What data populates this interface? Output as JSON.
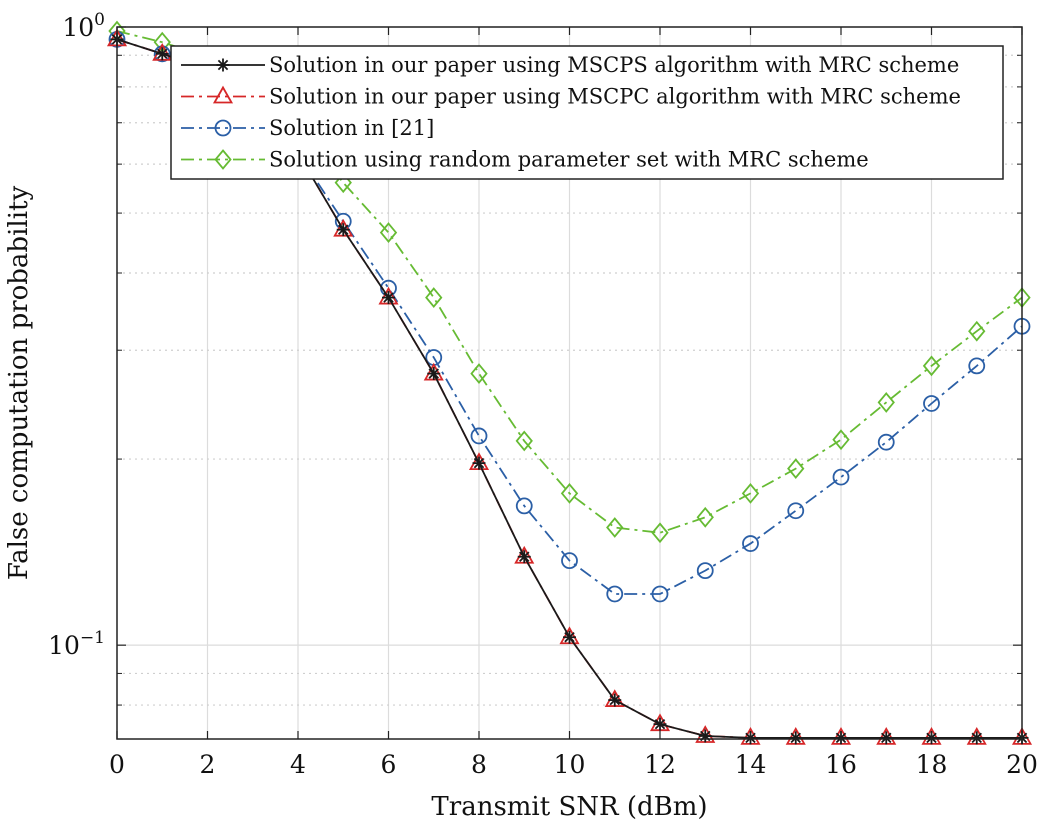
{
  "chart_data": {
    "type": "line",
    "xlabel": "Transmit SNR (dBm)",
    "ylabel": "False computation probability",
    "xlim": [
      0,
      20
    ],
    "ylim": [
      0.0705,
      1.0
    ],
    "yscale": "log",
    "grid": true,
    "legend_position": "top-right",
    "x_ticks": [
      "0",
      "2",
      "4",
      "6",
      "8",
      "10",
      "12",
      "14",
      "16",
      "18",
      "20"
    ],
    "y_ticks": [
      {
        "value": 1.0,
        "base": "10",
        "exp": "0"
      },
      {
        "value": 0.1,
        "base": "10",
        "exp": "−1"
      }
    ],
    "x": [
      0,
      1,
      2,
      3,
      4,
      5,
      6,
      7,
      8,
      9,
      10,
      11,
      12,
      13,
      14,
      15,
      16,
      17,
      18,
      19,
      20
    ],
    "series": [
      {
        "name": "Solution in our paper using MSCPS algorithm with MRC scheme",
        "color": "#1a1a1a",
        "dash": "solid",
        "marker": "asterisk",
        "values": [
          0.955,
          0.905,
          0.855,
          0.8,
          0.625,
          0.47,
          0.365,
          0.275,
          0.197,
          0.139,
          0.103,
          0.0815,
          0.0745,
          0.0713,
          0.0708,
          0.0708,
          0.0708,
          0.0708,
          0.0708,
          0.0708,
          0.0708
        ]
      },
      {
        "name": "Solution in our paper using MSCPC algorithm with MRC scheme",
        "color": "#d62728",
        "dash": "dashdot",
        "marker": "triangle",
        "values": [
          0.955,
          0.905,
          0.855,
          0.8,
          0.625,
          0.47,
          0.365,
          0.275,
          0.197,
          0.139,
          0.103,
          0.0815,
          0.0745,
          0.0713,
          0.0708,
          0.0708,
          0.0708,
          0.0708,
          0.0708,
          0.0708,
          0.0708
        ]
      },
      {
        "name": "Solution in [21]",
        "color": "#2b5fa6",
        "dash": "dashdot",
        "marker": "circle",
        "values": [
          0.955,
          0.905,
          0.855,
          0.8,
          0.625,
          0.485,
          0.378,
          0.292,
          0.218,
          0.168,
          0.137,
          0.121,
          0.121,
          0.132,
          0.146,
          0.165,
          0.187,
          0.213,
          0.246,
          0.283,
          0.328
        ]
      },
      {
        "name": "Solution using random parameter set with MRC scheme",
        "color": "#66bb33",
        "dash": "dashdot",
        "marker": "diamond",
        "values": [
          0.985,
          0.945,
          0.895,
          0.84,
          0.69,
          0.56,
          0.465,
          0.365,
          0.275,
          0.214,
          0.176,
          0.155,
          0.152,
          0.161,
          0.176,
          0.193,
          0.215,
          0.247,
          0.283,
          0.322,
          0.365
        ]
      }
    ]
  }
}
